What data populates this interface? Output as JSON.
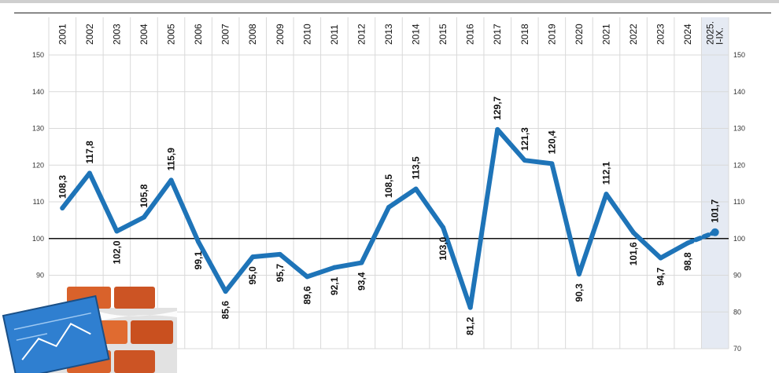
{
  "chart_data": {
    "type": "line",
    "categories": [
      "2001",
      "2002",
      "2003",
      "2004",
      "2005",
      "2006",
      "2007",
      "2008",
      "2009",
      "2010",
      "2011",
      "2012",
      "2013",
      "2014",
      "2015",
      "2016",
      "2017",
      "2018",
      "2019",
      "2020",
      "2021",
      "2022",
      "2023",
      "2024",
      "2025. I-IX."
    ],
    "category_lines": [
      [
        "2001"
      ],
      [
        "2002"
      ],
      [
        "2003"
      ],
      [
        "2004"
      ],
      [
        "2005"
      ],
      [
        "2006"
      ],
      [
        "2007"
      ],
      [
        "2008"
      ],
      [
        "2009"
      ],
      [
        "2010"
      ],
      [
        "2011"
      ],
      [
        "2012"
      ],
      [
        "2013"
      ],
      [
        "2014"
      ],
      [
        "2015"
      ],
      [
        "2016"
      ],
      [
        "2017"
      ],
      [
        "2018"
      ],
      [
        "2019"
      ],
      [
        "2020"
      ],
      [
        "2021"
      ],
      [
        "2022"
      ],
      [
        "2023"
      ],
      [
        "2024"
      ],
      [
        "2025.",
        "I-IX."
      ]
    ],
    "values": [
      108.3,
      117.8,
      102.0,
      105.8,
      115.9,
      99.1,
      85.6,
      95.0,
      95.7,
      89.6,
      92.1,
      93.4,
      108.5,
      113.5,
      103.0,
      81.2,
      129.7,
      121.3,
      120.4,
      90.3,
      112.1,
      101.6,
      94.7,
      98.8,
      101.7
    ],
    "value_labels": [
      "108,3",
      "117,8",
      "102,0",
      "105,8",
      "115,9",
      "99,1",
      "85,6",
      "95,0",
      "95,7",
      "89,6",
      "92,1",
      "93,4",
      "108,5",
      "113,5",
      "103,0",
      "81,2",
      "129,7",
      "121,3",
      "120,4",
      "90,3",
      "112,1",
      "101,6",
      "94,7",
      "98,8",
      "101,7"
    ],
    "label_position": [
      "above",
      "above",
      "below",
      "above",
      "above",
      "below",
      "below",
      "below",
      "below",
      "below",
      "below",
      "below",
      "above",
      "above",
      "below",
      "below",
      "above",
      "above",
      "above",
      "below",
      "above",
      "below",
      "below",
      "below",
      "above"
    ],
    "yticks": [
      150,
      140,
      130,
      120,
      110,
      100,
      90,
      80,
      70
    ],
    "ylim": [
      70,
      150
    ],
    "reference_line": 100,
    "highlight_last": true,
    "grid": true,
    "colors": {
      "line": "#1e74b8",
      "grid": "#d9d9d9",
      "reference": "#111111",
      "highlight": "#e5eaf3"
    },
    "title": "",
    "xlabel": "",
    "ylabel": ""
  }
}
